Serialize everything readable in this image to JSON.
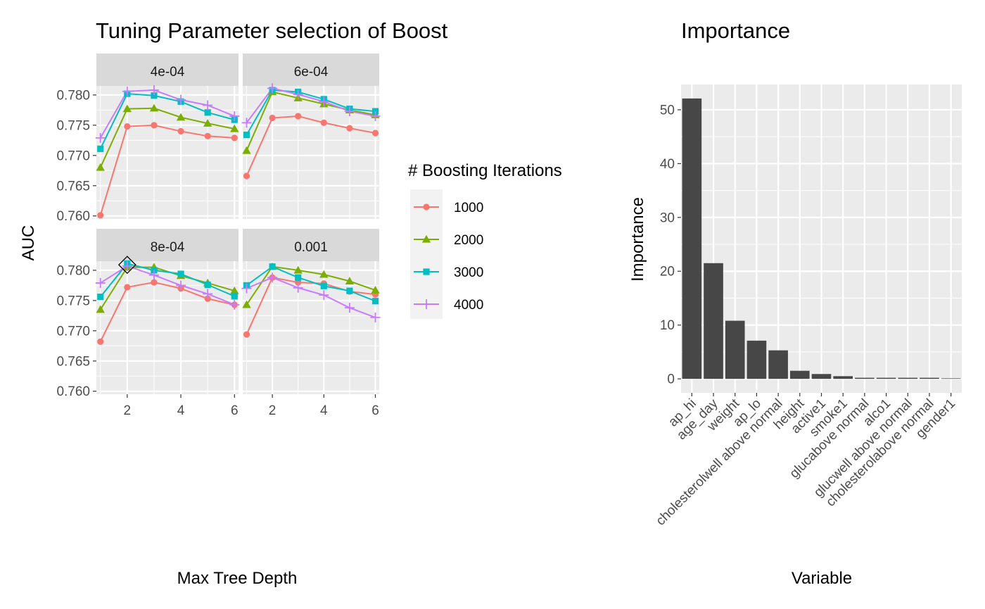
{
  "chart_data": [
    {
      "type": "line",
      "title": "Tuning Parameter selection of Boost",
      "xlabel": "Max Tree Depth",
      "ylabel": "AUC",
      "x": [
        1,
        2,
        3,
        4,
        5,
        6
      ],
      "x_ticks": [
        "2",
        "4",
        "6"
      ],
      "xlim": [
        0.85,
        6.15
      ],
      "ylim": [
        0.7595,
        0.7815
      ],
      "y_ticks": [
        "0.760",
        "0.765",
        "0.770",
        "0.775",
        "0.780"
      ],
      "grid": true,
      "legend": {
        "title": "# Boosting Iterations",
        "position": "right",
        "entries": [
          "1000",
          "2000",
          "3000",
          "4000"
        ]
      },
      "series_styles": [
        {
          "name": "1000",
          "color": "#F8766D",
          "marker": "circle"
        },
        {
          "name": "2000",
          "color": "#7CAE00",
          "marker": "triangle"
        },
        {
          "name": "3000",
          "color": "#00BFC4",
          "marker": "square"
        },
        {
          "name": "4000",
          "color": "#C77CFF",
          "marker": "plus"
        }
      ],
      "panels": [
        {
          "label": "4e-04",
          "series": [
            {
              "name": "1000",
              "values": [
                0.7601,
                0.7748,
                0.775,
                0.774,
                0.7732,
                0.7729
              ]
            },
            {
              "name": "2000",
              "values": [
                0.768,
                0.7777,
                0.7778,
                0.7763,
                0.7753,
                0.7744
              ]
            },
            {
              "name": "3000",
              "values": [
                0.7711,
                0.7802,
                0.7799,
                0.7789,
                0.7771,
                0.7759
              ]
            },
            {
              "name": "4000",
              "values": [
                0.7729,
                0.7806,
                0.7808,
                0.7792,
                0.7783,
                0.7765
              ]
            }
          ]
        },
        {
          "label": "6e-04",
          "series": [
            {
              "name": "1000",
              "values": [
                0.7666,
                0.7762,
                0.7765,
                0.7754,
                0.7745,
                0.7737
              ]
            },
            {
              "name": "2000",
              "values": [
                0.7708,
                0.7805,
                0.7795,
                0.7785,
                0.7775,
                0.7767
              ]
            },
            {
              "name": "3000",
              "values": [
                0.7734,
                0.7808,
                0.7805,
                0.7793,
                0.7777,
                0.7773
              ]
            },
            {
              "name": "4000",
              "values": [
                0.7754,
                0.7811,
                0.7801,
                0.7789,
                0.7773,
                0.7765
              ]
            }
          ]
        },
        {
          "label": "8e-04",
          "series": [
            {
              "name": "1000",
              "values": [
                0.7682,
                0.7772,
                0.778,
                0.777,
                0.7753,
                0.7743
              ]
            },
            {
              "name": "2000",
              "values": [
                0.7735,
                0.7805,
                0.7805,
                0.7791,
                0.7779,
                0.7766
              ]
            },
            {
              "name": "3000",
              "values": [
                0.7756,
                0.7811,
                0.78,
                0.7794,
                0.7776,
                0.7757
              ]
            },
            {
              "name": "4000",
              "values": [
                0.7779,
                0.7807,
                0.7792,
                0.7775,
                0.7761,
                0.7743
              ]
            }
          ],
          "highlight": {
            "x": 2,
            "y": 0.7809
          }
        },
        {
          "label": "0.001",
          "series": [
            {
              "name": "1000",
              "values": [
                0.7694,
                0.7788,
                0.778,
                0.7778,
                0.7765,
                0.776
              ]
            },
            {
              "name": "2000",
              "values": [
                0.7743,
                0.7806,
                0.78,
                0.7793,
                0.7782,
                0.7767
              ]
            },
            {
              "name": "3000",
              "values": [
                0.7775,
                0.7806,
                0.7788,
                0.7774,
                0.7766,
                0.7749
              ]
            },
            {
              "name": "4000",
              "values": [
                0.777,
                0.7788,
                0.7771,
                0.7759,
                0.7738,
                0.7722
              ]
            }
          ]
        }
      ]
    },
    {
      "type": "bar",
      "title": "Importance",
      "xlabel": "Variable",
      "ylabel": "Importance",
      "categories": [
        "ap_hi",
        "age_day",
        "weight",
        "ap_lo",
        "cholesterolwell above normal",
        "height",
        "active1",
        "smoke1",
        "glucabove normal",
        "alco1",
        "glucwell above normal",
        "cholesterolabove normal",
        "gender1"
      ],
      "values": [
        52.1,
        21.5,
        10.8,
        7.1,
        5.3,
        1.5,
        0.9,
        0.5,
        0.2,
        0.2,
        0.2,
        0.2,
        0.1
      ],
      "ylim": [
        -2.6,
        54.7
      ],
      "y_ticks": [
        "0",
        "10",
        "20",
        "30",
        "40",
        "50"
      ],
      "bar_color": "#474747",
      "grid": true
    }
  ]
}
